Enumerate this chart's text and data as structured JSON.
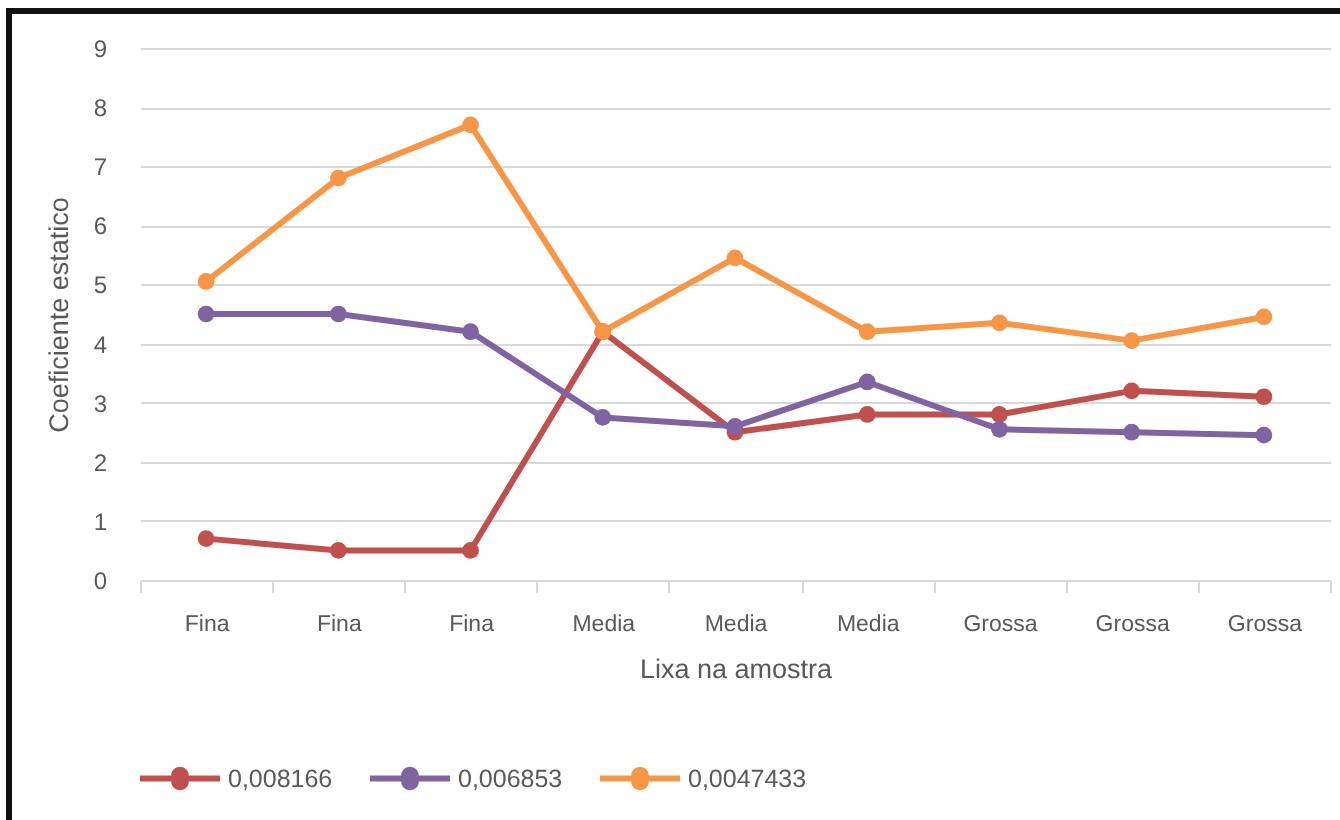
{
  "chart_data": {
    "type": "line",
    "xlabel": "Lixa na amostra",
    "ylabel": "Coeficiente estatico",
    "categories": [
      "Fina",
      "Fina",
      "Fina",
      "Media",
      "Media",
      "Media",
      "Grossa",
      "Grossa",
      "Grossa"
    ],
    "series": [
      {
        "name": "0,008166",
        "color": "#c0504d",
        "values": [
          0.7,
          0.5,
          0.5,
          4.2,
          2.5,
          2.8,
          2.8,
          3.2,
          3.1
        ]
      },
      {
        "name": "0,006853",
        "color": "#8064a2",
        "values": [
          4.5,
          4.5,
          4.2,
          2.75,
          2.6,
          3.35,
          2.55,
          2.5,
          2.45
        ]
      },
      {
        "name": "0,0047433",
        "color": "#f79646",
        "values": [
          5.05,
          6.8,
          7.7,
          4.2,
          5.45,
          4.2,
          4.35,
          4.05,
          4.45
        ]
      }
    ],
    "ylim": [
      0,
      9
    ],
    "yticks": [
      0,
      1,
      2,
      3,
      4,
      5,
      6,
      7,
      8,
      9
    ],
    "grid": "y",
    "legend": "bottom",
    "marker": "circle",
    "line_style": "solid"
  }
}
